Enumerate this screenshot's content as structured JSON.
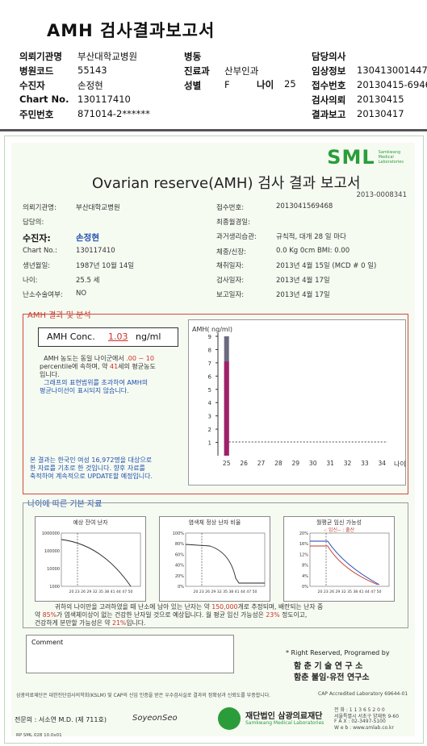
{
  "header": {
    "title": "AMH 검사결과보고서",
    "rows": [
      [
        {
          "k": "의뢰기관명",
          "v": "부산대학교병원"
        },
        {
          "k": "병동",
          "v": ""
        },
        {
          "k": "담당의사",
          "v": ""
        }
      ],
      [
        {
          "k": "병원코드",
          "v": "55143"
        },
        {
          "k": "진료과",
          "v": "산부인과"
        },
        {
          "k": "임상정보",
          "v": "130413001447"
        }
      ],
      [
        {
          "k": "수진자",
          "v": "손정현"
        },
        {
          "k": "성별",
          "v": "F"
        },
        {
          "k": "접수번호",
          "v": "20130415-6946"
        }
      ],
      [
        {
          "k": "Chart No.",
          "v": "130117410"
        },
        {
          "k": "",
          "v": ""
        },
        {
          "k": "검사의뢰",
          "v": "20130415"
        }
      ],
      [
        {
          "k": "주민번호",
          "v": "871014-2******"
        },
        {
          "k": "",
          "v": ""
        },
        {
          "k": "결과보고",
          "v": "20130417"
        }
      ]
    ],
    "age_label": "나이",
    "age_value": "25"
  },
  "report": {
    "logo": "SML",
    "logo_sub": [
      "Samkwang",
      "Medical",
      "Laboratories"
    ],
    "title": "Ovarian reserve(AMH) 검사 결과 보고서",
    "doc_no": "2013-0008341",
    "left_fields": [
      {
        "k": "의뢰기관명:",
        "v": "부산대학교병원"
      },
      {
        "k": "담당의:",
        "v": ""
      },
      {
        "k": "수진자:",
        "v": "손정현"
      },
      {
        "k": "Chart No.:",
        "v": "130117410"
      },
      {
        "k": "생년월일:",
        "v": "1987년 10월 14일"
      },
      {
        "k": "나이:",
        "v": "25.5 세"
      },
      {
        "k": "난소수술여부:",
        "v": "NO"
      }
    ],
    "right_fields": [
      {
        "k": "접수번호:",
        "v": "2013041569468"
      },
      {
        "k": "최종월경일:",
        "v": ""
      },
      {
        "k": "과거생리습관:",
        "v": "규칙적, 대개  28 일 마다"
      },
      {
        "k": "체중/신장:",
        "v": "0.0 Kg       0cm    BMI:    0.00"
      },
      {
        "k": "채취일자:",
        "v": "2013년 4월 15일  (MCD #  0 일)"
      },
      {
        "k": "검사일자:",
        "v": "2013년 4월 17일"
      },
      {
        "k": "보고일자:",
        "v": "2013년 4월 17일"
      }
    ],
    "amh_section": {
      "label": "AMH 결과 및 분석",
      "conc_label": "AMH Conc.",
      "conc_value": "1.03",
      "conc_unit": "ng/ml",
      "desc1_a": "AMH 농도는 동일 나이군에서",
      "desc1_b": ".00 ~  10",
      "desc2_a": "percentile에 속하며, 약",
      "desc2_b": "41",
      "desc2_c": "세의 평균농도",
      "desc3": "입니다.",
      "desc4": "그래프의 표현범위를 초과하여 AMH의",
      "desc5": "평균나이선이 표시되지 않습니다.",
      "note1": "본 결과는 한국인 여성 16,972명을 대상으로",
      "note2": "한 자료를 기초로 한 것입니다. 향후 자료를",
      "note3": "축적하여 계속적으로 UPDATE할 예정입니다."
    },
    "age_section": {
      "label": "나이에 따른 기본 자료",
      "charts": [
        {
          "title": "예상 잔여 난자",
          "yticks": [
            "1000000",
            "100000",
            "10000",
            "1000"
          ]
        },
        {
          "title": "염색체 정상 난자 비율",
          "yticks": [
            "100%",
            "80%",
            "60%",
            "40%",
            "20%",
            "0%"
          ]
        },
        {
          "title": "월평균 임신 가능성",
          "legend": "-: 임신-- : 출산",
          "yticks": [
            "20%",
            "16%",
            "12%",
            "8%",
            "4%",
            "0%"
          ]
        }
      ],
      "xticks": "20 23 26 29 32 35 38 41 44 47 50",
      "sum1_a": "귀하의 나이만을 고려하였을 때 난소에 남아 있는 난자는 약",
      "sum1_b": "150,000",
      "sum1_c": "개로 추정되며, 배란되는 난자 중",
      "sum2_a": "약",
      "sum2_b": "85%",
      "sum2_c": "가 염색체이상이 없는 건강한 난자일 것으로 예상됩니다. 월 평균 임신 가능성은",
      "sum2_d": "23%",
      "sum2_e": "정도이고,",
      "sum3_a": "건강하게 분만할 가능성은 약",
      "sum3_b": "21%",
      "sum3_c": "입니다."
    },
    "comment_label": "Comment",
    "rights": "* Right Reserved, Programed by",
    "inst1": "함 춘 기 술 연 구 소",
    "inst2": "함춘 불임·유전 연구소",
    "footer_small": "삼광의료재단은 대한진단검사의학회(KSLM) 및 CAP의 신임 인증을 받은 우수검사실로 결과의 정확성과 신뢰도를 부증합니다.",
    "cap": "CAP  Accredited  Laboratory  69644-01",
    "doctor": "전문의 : 서소연 M.D. (제 711호)",
    "doctor_sign": "SoyeonSeo",
    "foundation": "재단법인 삼광의료재단",
    "foundation_en": "Samkwang Medical Laboratories",
    "tel": "전 화 : 1 1 3 6 5 2 0 0",
    "addr1": "서울특별시 서초구 양재동 9-60",
    "fax": "F A X : 02-3497-5100",
    "web": "W e b : www.smlab.co.kr",
    "form_code": "RP  SML  028  10.0x01"
  },
  "chart_data": {
    "type": "bar",
    "ylabel": "AMH( ng/ml)",
    "xlabel": "나이",
    "categories": [
      "25",
      "26",
      "27",
      "28",
      "29",
      "30",
      "31",
      "32",
      "33",
      "34"
    ],
    "yticks": [
      1,
      2,
      3,
      4,
      5,
      6,
      7,
      8,
      9
    ],
    "ylim": [
      0,
      9
    ],
    "bar_category": "25",
    "bar_total": 9,
    "bar_highlight": 7.1,
    "reference_line": 1.03
  }
}
